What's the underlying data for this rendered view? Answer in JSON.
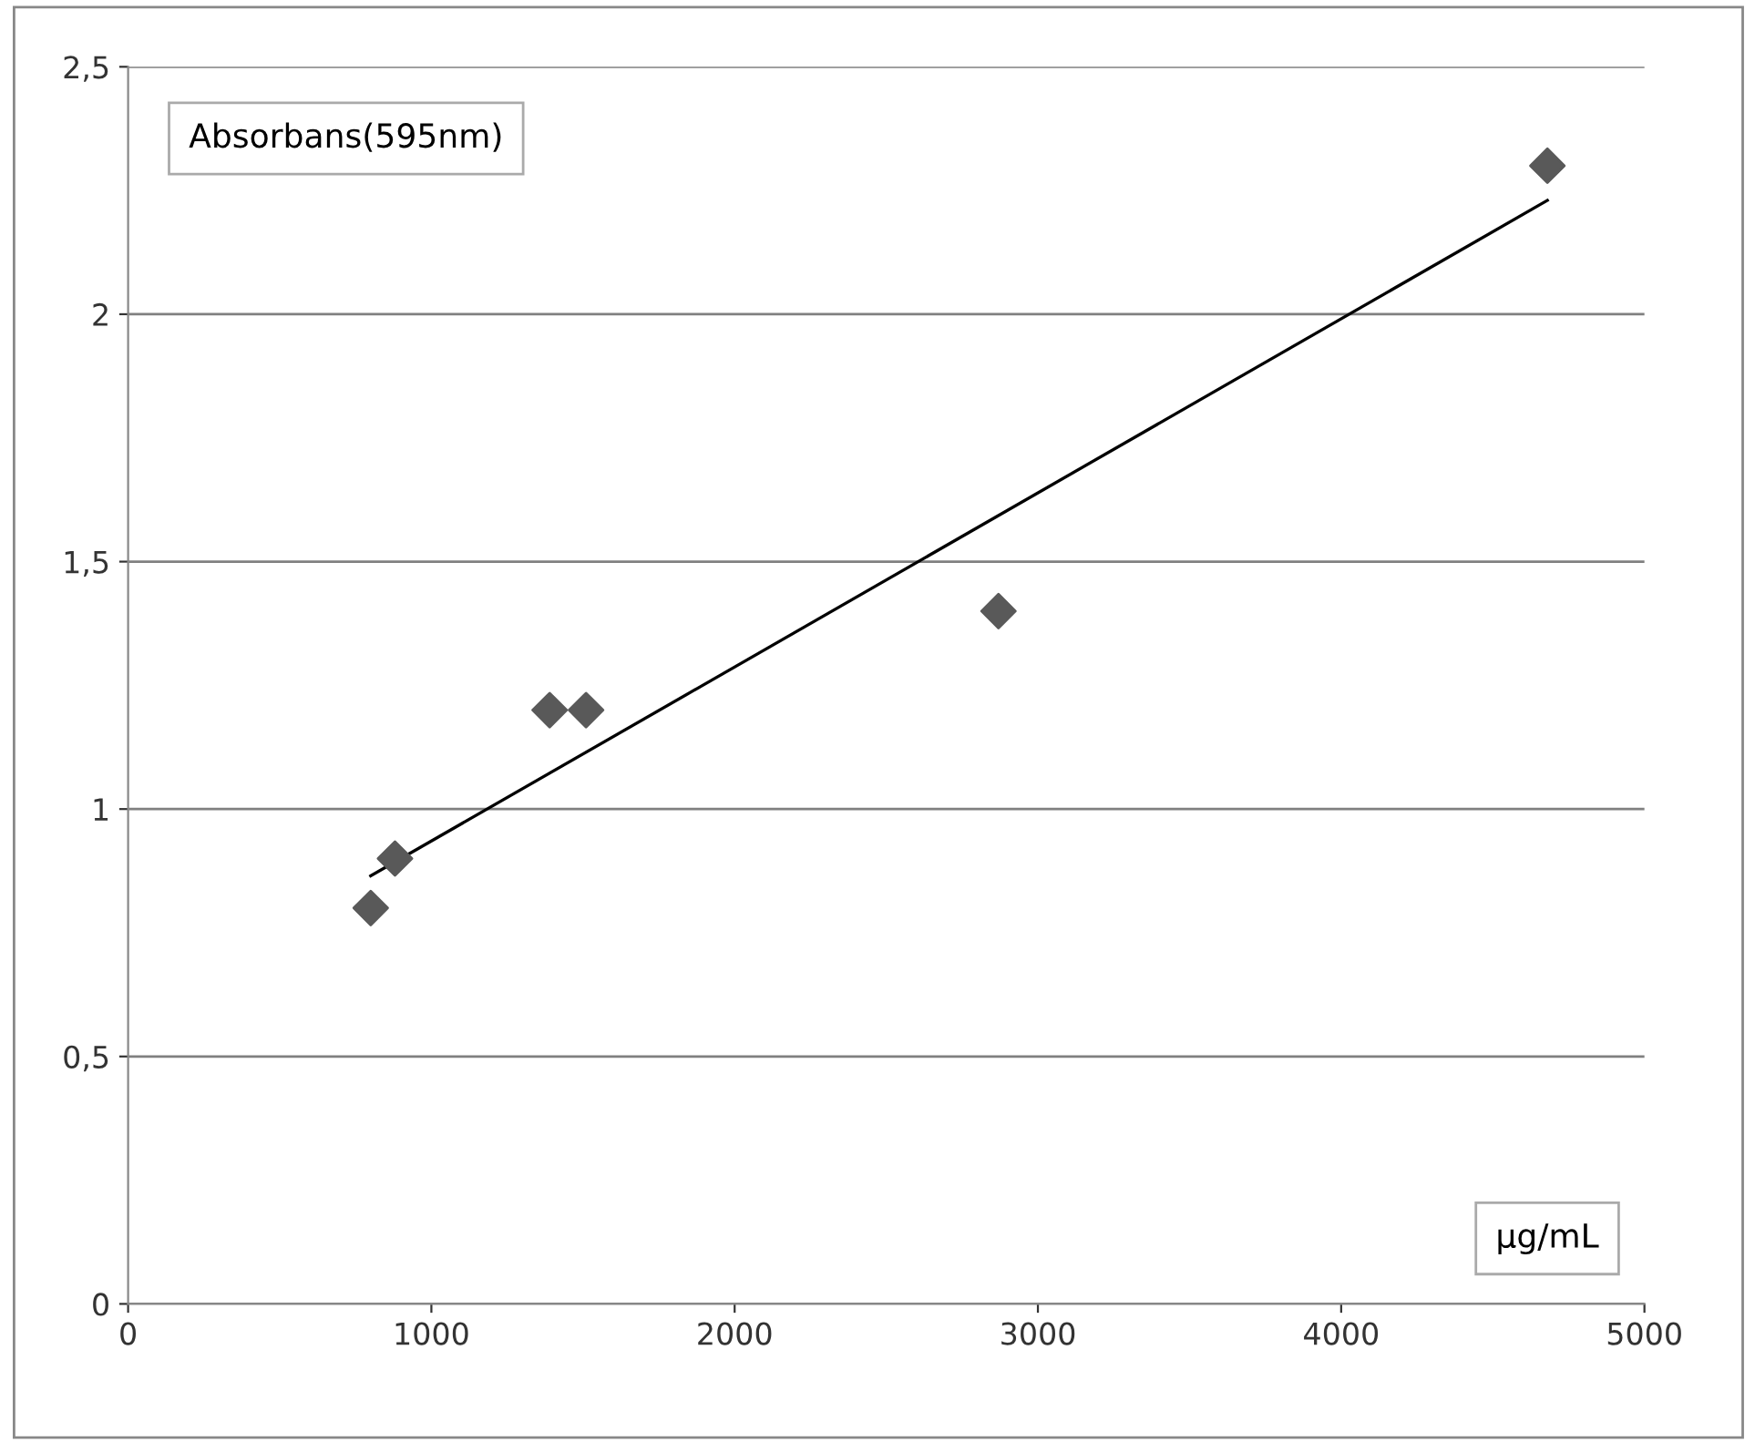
{
  "chart_data": {
    "type": "scatter",
    "xlabel": "µg/mL",
    "ylabel": "Absorbans(595nm)",
    "series": [
      {
        "color": "#595959",
        "marker": "diamond",
        "x": [
          800,
          880,
          1390,
          1510,
          2870,
          4680
        ],
        "values": [
          0.8,
          0.9,
          1.2,
          1.2,
          1.4,
          2.3
        ]
      },
      {
        "type": "line",
        "color": "#000000",
        "marker": "none",
        "x": [
          800,
          4680
        ],
        "values": [
          0.865,
          2.23
        ]
      }
    ],
    "xlim": [
      0,
      5000
    ],
    "xticks": [
      0,
      1000,
      2000,
      3000,
      4000,
      5000
    ],
    "ylim": [
      0,
      2.5
    ],
    "yticks": [
      0,
      {
        "value": 0.5,
        "label": "0,5"
      },
      1,
      {
        "value": 1.5,
        "label": "1,5"
      },
      2,
      {
        "value": 2.5,
        "label": "2,5"
      }
    ],
    "grid": "y",
    "legend": false
  }
}
